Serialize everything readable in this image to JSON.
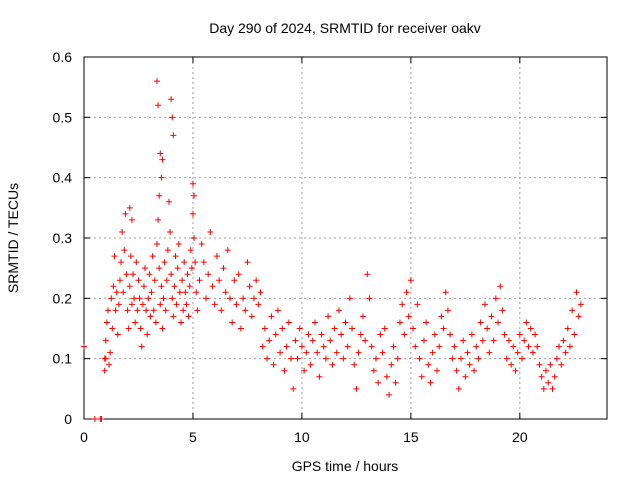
{
  "chart_data": {
    "type": "scatter",
    "title": "Day 290 of 2024, SRMTID for receiver oakv",
    "xlabel": "GPS time / hours",
    "ylabel": "SRMTID / TECUs",
    "xlim": [
      0,
      24
    ],
    "ylim": [
      0,
      0.6
    ],
    "x_ticks": [
      0,
      5,
      10,
      15,
      20
    ],
    "x_tick_labels": [
      "0",
      "5",
      "10",
      "15",
      "20"
    ],
    "y_ticks": [
      0,
      0.1,
      0.2,
      0.3,
      0.4,
      0.5,
      0.6
    ],
    "y_tick_labels": [
      "0",
      "0.1",
      "0.2",
      "0.3",
      "0.4",
      "0.5",
      "0.6"
    ],
    "grid": true,
    "marker": "plus",
    "series": [
      {
        "name": "SRMTID",
        "color": "#ff0000",
        "x": [
          0.0,
          0.5,
          0.75,
          0.8,
          0.95,
          1.0,
          1.05,
          1.1,
          1.15,
          1.2,
          1.25,
          1.3,
          1.35,
          1.4,
          1.45,
          1.5,
          1.55,
          1.6,
          1.65,
          1.7,
          1.75,
          1.8,
          1.85,
          1.9,
          1.95,
          2.0,
          2.05,
          2.1,
          2.15,
          2.2,
          2.25,
          2.3,
          2.35,
          2.4,
          2.45,
          2.5,
          2.55,
          2.6,
          2.65,
          2.7,
          2.75,
          2.8,
          2.85,
          2.9,
          2.95,
          3.0,
          3.05,
          3.1,
          3.15,
          3.2,
          3.25,
          3.3,
          3.35,
          3.4,
          3.45,
          3.5,
          3.55,
          3.6,
          3.65,
          3.7,
          3.75,
          3.8,
          3.85,
          3.9,
          3.95,
          4.0,
          4.05,
          4.1,
          4.15,
          4.2,
          4.25,
          4.3,
          4.35,
          4.4,
          4.45,
          4.5,
          4.55,
          4.6,
          4.65,
          4.7,
          4.75,
          4.8,
          4.85,
          4.9,
          4.95,
          5.0,
          5.05,
          5.1,
          5.15,
          5.2,
          5.3,
          5.4,
          5.5,
          5.6,
          5.7,
          5.8,
          5.9,
          6.0,
          6.1,
          6.2,
          6.3,
          6.4,
          6.5,
          6.6,
          6.7,
          6.8,
          6.9,
          7.0,
          7.1,
          7.2,
          7.3,
          7.4,
          7.5,
          7.6,
          7.7,
          7.8,
          7.9,
          8.0,
          8.1,
          8.2,
          8.3,
          8.4,
          8.5,
          8.6,
          8.7,
          8.8,
          8.9,
          9.0,
          9.1,
          9.2,
          9.3,
          9.4,
          9.5,
          9.6,
          9.7,
          9.8,
          9.9,
          10.0,
          10.1,
          10.2,
          10.3,
          10.4,
          10.5,
          10.6,
          10.7,
          10.8,
          10.9,
          11.0,
          11.1,
          11.2,
          11.3,
          11.4,
          11.5,
          11.6,
          11.7,
          11.8,
          11.9,
          12.0,
          12.1,
          12.2,
          12.3,
          12.4,
          12.5,
          12.6,
          12.7,
          12.8,
          12.9,
          13.0,
          13.1,
          13.2,
          13.3,
          13.4,
          13.5,
          13.6,
          13.7,
          13.8,
          13.9,
          14.0,
          14.1,
          14.2,
          14.3,
          14.4,
          14.5,
          14.6,
          14.7,
          14.8,
          14.9,
          15.0,
          15.1,
          15.2,
          15.3,
          15.4,
          15.5,
          15.6,
          15.7,
          15.8,
          15.9,
          16.0,
          16.1,
          16.2,
          16.3,
          16.4,
          16.5,
          16.6,
          16.7,
          16.8,
          16.9,
          17.0,
          17.1,
          17.2,
          17.3,
          17.4,
          17.5,
          17.6,
          17.7,
          17.8,
          17.9,
          18.0,
          18.1,
          18.2,
          18.3,
          18.4,
          18.5,
          18.6,
          18.7,
          18.8,
          18.9,
          19.0,
          19.1,
          19.2,
          19.3,
          19.4,
          19.5,
          19.6,
          19.7,
          19.8,
          19.9,
          20.0,
          20.1,
          20.2,
          20.3,
          20.4,
          20.5,
          20.6,
          20.7,
          20.8,
          20.9,
          21.0,
          21.1,
          21.2,
          21.3,
          21.4,
          21.5,
          21.6,
          21.7,
          21.8,
          21.9,
          22.0,
          22.1,
          22.2,
          22.3,
          22.4,
          22.5,
          22.6,
          22.7,
          22.8,
          3.35,
          3.4,
          3.5,
          3.55,
          4.0,
          4.05,
          4.1,
          3.45,
          3.6,
          5.0,
          5.05,
          2.1,
          2.2,
          0.95,
          1.0
        ],
        "y": [
          0.12,
          0.0,
          0.0,
          0.0,
          0.1,
          0.13,
          0.16,
          0.18,
          0.09,
          0.11,
          0.2,
          0.15,
          0.22,
          0.27,
          0.18,
          0.21,
          0.14,
          0.19,
          0.23,
          0.26,
          0.31,
          0.21,
          0.28,
          0.34,
          0.24,
          0.18,
          0.15,
          0.22,
          0.27,
          0.19,
          0.24,
          0.2,
          0.16,
          0.26,
          0.18,
          0.23,
          0.2,
          0.15,
          0.12,
          0.19,
          0.22,
          0.25,
          0.18,
          0.14,
          0.2,
          0.24,
          0.17,
          0.21,
          0.27,
          0.18,
          0.23,
          0.16,
          0.29,
          0.33,
          0.25,
          0.19,
          0.22,
          0.15,
          0.2,
          0.26,
          0.18,
          0.23,
          0.28,
          0.36,
          0.31,
          0.24,
          0.2,
          0.17,
          0.22,
          0.27,
          0.19,
          0.25,
          0.29,
          0.21,
          0.16,
          0.23,
          0.18,
          0.26,
          0.21,
          0.19,
          0.24,
          0.17,
          0.22,
          0.28,
          0.25,
          0.34,
          0.3,
          0.26,
          0.21,
          0.18,
          0.23,
          0.29,
          0.26,
          0.2,
          0.24,
          0.31,
          0.22,
          0.19,
          0.27,
          0.23,
          0.18,
          0.25,
          0.21,
          0.28,
          0.2,
          0.16,
          0.23,
          0.19,
          0.24,
          0.15,
          0.2,
          0.18,
          0.26,
          0.22,
          0.17,
          0.2,
          0.23,
          0.19,
          0.21,
          0.12,
          0.15,
          0.1,
          0.13,
          0.17,
          0.09,
          0.14,
          0.18,
          0.11,
          0.15,
          0.08,
          0.12,
          0.16,
          0.1,
          0.05,
          0.13,
          0.1,
          0.15,
          0.12,
          0.08,
          0.11,
          0.14,
          0.09,
          0.13,
          0.16,
          0.11,
          0.07,
          0.14,
          0.12,
          0.1,
          0.17,
          0.13,
          0.09,
          0.15,
          0.11,
          0.18,
          0.14,
          0.1,
          0.16,
          0.12,
          0.2,
          0.15,
          0.09,
          0.05,
          0.11,
          0.14,
          0.17,
          0.13,
          0.24,
          0.2,
          0.12,
          0.08,
          0.1,
          0.06,
          0.14,
          0.11,
          0.15,
          0.07,
          0.04,
          0.09,
          0.12,
          0.06,
          0.1,
          0.16,
          0.19,
          0.14,
          0.21,
          0.17,
          0.23,
          0.15,
          0.12,
          0.19,
          0.1,
          0.07,
          0.13,
          0.16,
          0.09,
          0.06,
          0.11,
          0.14,
          0.08,
          0.12,
          0.17,
          0.15,
          0.21,
          0.18,
          0.14,
          0.1,
          0.12,
          0.08,
          0.05,
          0.1,
          0.13,
          0.07,
          0.11,
          0.09,
          0.14,
          0.08,
          0.12,
          0.1,
          0.16,
          0.13,
          0.19,
          0.15,
          0.11,
          0.17,
          0.13,
          0.2,
          0.16,
          0.22,
          0.18,
          0.14,
          0.1,
          0.13,
          0.09,
          0.12,
          0.08,
          0.11,
          0.14,
          0.1,
          0.13,
          0.16,
          0.12,
          0.15,
          0.11,
          0.14,
          0.12,
          0.09,
          0.07,
          0.05,
          0.08,
          0.06,
          0.09,
          0.05,
          0.07,
          0.1,
          0.12,
          0.09,
          0.13,
          0.11,
          0.15,
          0.12,
          0.18,
          0.14,
          0.21,
          0.17,
          0.19,
          0.56,
          0.52,
          0.44,
          0.4,
          0.53,
          0.5,
          0.47,
          0.37,
          0.43,
          0.39,
          0.37,
          0.35,
          0.33,
          0.08,
          0.1
        ]
      }
    ]
  }
}
